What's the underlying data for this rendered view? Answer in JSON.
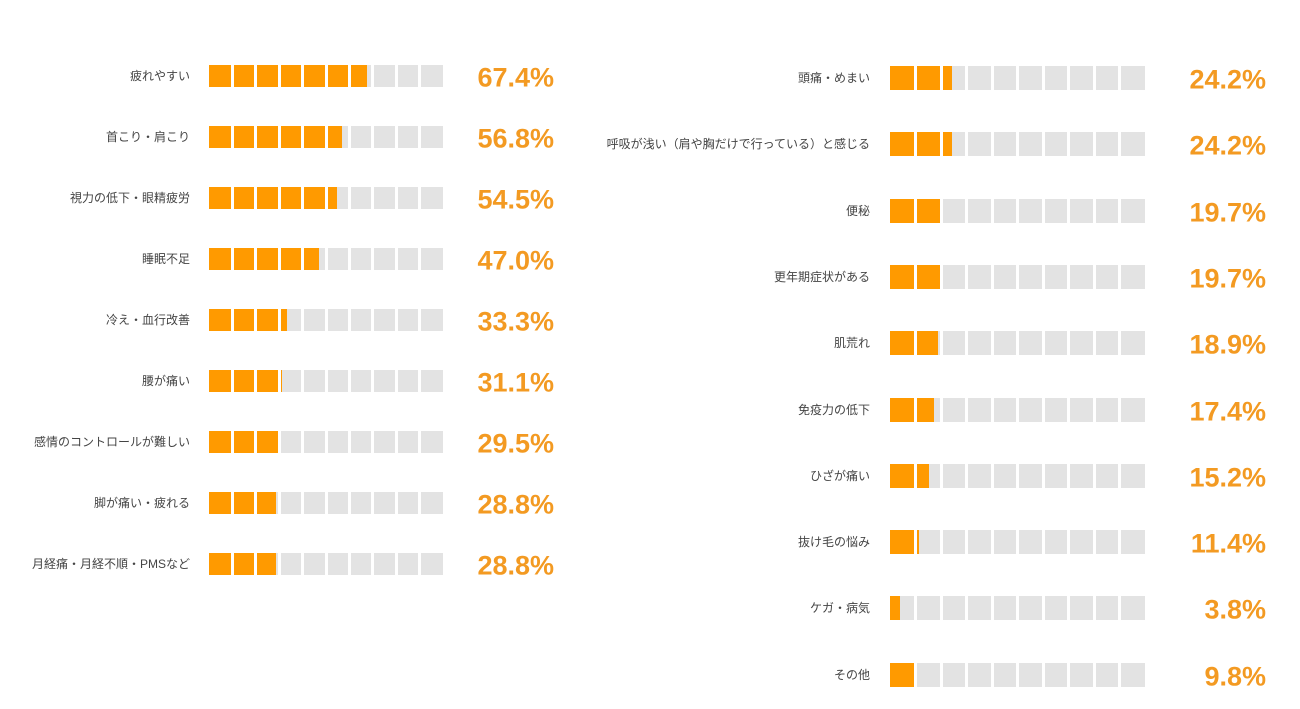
{
  "chart_data": {
    "type": "bar",
    "orientation": "horizontal",
    "unit": "%",
    "segments_per_bar": 10,
    "colors": {
      "fill": "#ff9a00",
      "track": "#e3e3e3",
      "value_text": "#f39a22"
    },
    "panels": [
      {
        "categories": [
          "疲れやすい",
          "首こり・肩こり",
          "視力の低下・眼精疲労",
          "睡眠不足",
          "冷え・血行改善",
          "腰が痛い",
          "感情のコントロールが難しい",
          "脚が痛い・疲れる",
          "月経痛・月経不順・PMSなど"
        ],
        "values": [
          67.4,
          56.8,
          54.5,
          47.0,
          33.3,
          31.1,
          29.5,
          28.8,
          28.8
        ],
        "labels": [
          "67.4%",
          "56.8%",
          "54.5%",
          "47.0%",
          "33.3%",
          "31.1%",
          "29.5%",
          "28.8%",
          "28.8%"
        ]
      },
      {
        "categories": [
          "頭痛・めまい",
          "呼吸が浅い（肩や胸だけで行っている）と感じる",
          "便秘",
          "更年期症状がある",
          "肌荒れ",
          "免疫力の低下",
          "ひざが痛い",
          "抜け毛の悩み",
          "ケガ・病気",
          "その他"
        ],
        "values": [
          24.2,
          24.2,
          19.7,
          19.7,
          18.9,
          17.4,
          15.2,
          11.4,
          3.8,
          9.8
        ],
        "labels": [
          "24.2%",
          "24.2%",
          "19.7%",
          "19.7%",
          "18.9%",
          "17.4%",
          "15.2%",
          "11.4%",
          "3.8%",
          "9.8%"
        ]
      }
    ]
  }
}
